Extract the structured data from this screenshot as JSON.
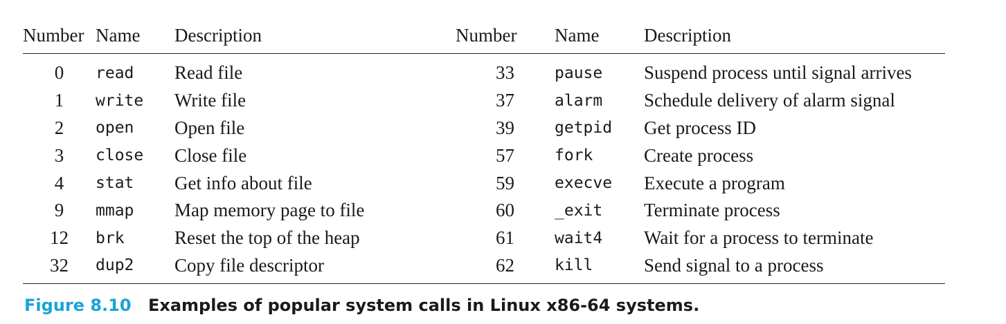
{
  "table": {
    "headers": [
      "Number",
      "Name",
      "Description",
      "Number",
      "Name",
      "Description"
    ],
    "rows": [
      [
        "0",
        "read",
        "Read file",
        "33",
        "pause",
        "Suspend process until signal arrives"
      ],
      [
        "1",
        "write",
        "Write file",
        "37",
        "alarm",
        "Schedule delivery of alarm signal"
      ],
      [
        "2",
        "open",
        "Open file",
        "39",
        "getpid",
        "Get process ID"
      ],
      [
        "3",
        "close",
        "Close file",
        "57",
        "fork",
        "Create process"
      ],
      [
        "4",
        "stat",
        "Get info about file",
        "59",
        "execve",
        "Execute a program"
      ],
      [
        "9",
        "mmap",
        "Map memory page to file",
        "60",
        "_exit",
        "Terminate process"
      ],
      [
        "12",
        "brk",
        "Reset the top of the heap",
        "61",
        "wait4",
        "Wait for a process to terminate"
      ],
      [
        "32",
        "dup2",
        "Copy file descriptor",
        "62",
        "kill",
        "Send signal to a process"
      ]
    ]
  },
  "caption": {
    "label": "Figure 8.10",
    "text": "Examples of popular system calls in Linux x86-64 systems."
  },
  "colors": {
    "caption_label": "#1aa3d9",
    "text": "#1a1a1a",
    "rule": "#222222"
  }
}
